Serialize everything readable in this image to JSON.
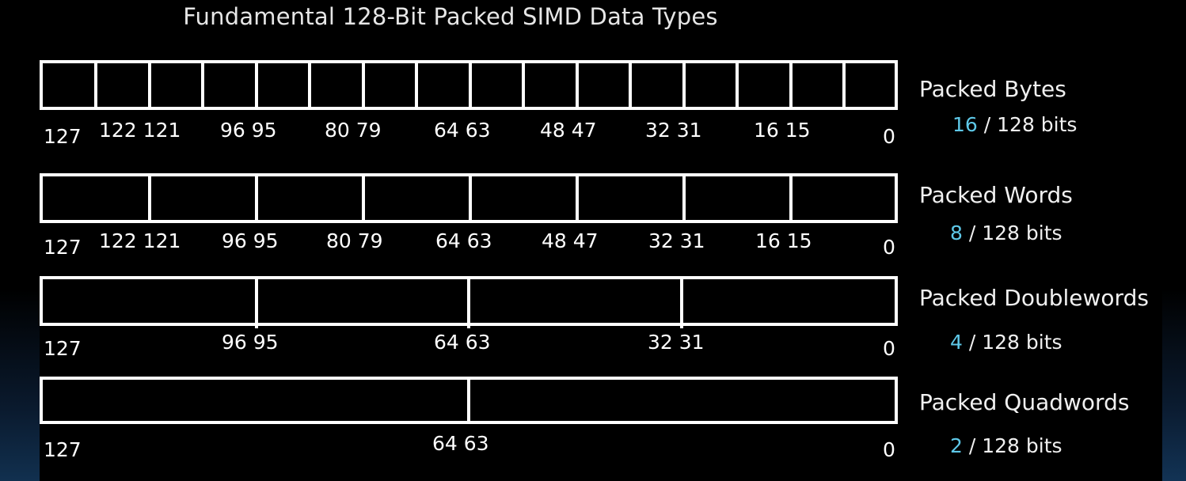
{
  "title": "Fundamental 128-Bit Packed SIMD Data Types",
  "accent_color": "#5ec8e8",
  "rows": [
    {
      "name": "Packed Bytes",
      "count": "16",
      "suffix": "/ 128 bits",
      "bit_labels": [
        "127",
        "122 121",
        "96 95",
        "80 79",
        "64 63",
        "48 47",
        "32 31",
        "16 15",
        "0"
      ]
    },
    {
      "name": "Packed Words",
      "count": "8",
      "suffix": "/ 128 bits",
      "bit_labels": [
        "127",
        "122 121",
        "96 95",
        "80 79",
        "64 63",
        "48 47",
        "32 31",
        "16 15",
        "0"
      ]
    },
    {
      "name": "Packed Doublewords",
      "count": "4",
      "suffix": "/ 128 bits",
      "bit_labels": [
        "127",
        "96 95",
        "64 63",
        "32 31",
        "0"
      ]
    },
    {
      "name": "Packed Quadwords",
      "count": "2",
      "suffix": "/ 128 bits",
      "bit_labels": [
        "127",
        "64 63",
        "0"
      ]
    }
  ]
}
